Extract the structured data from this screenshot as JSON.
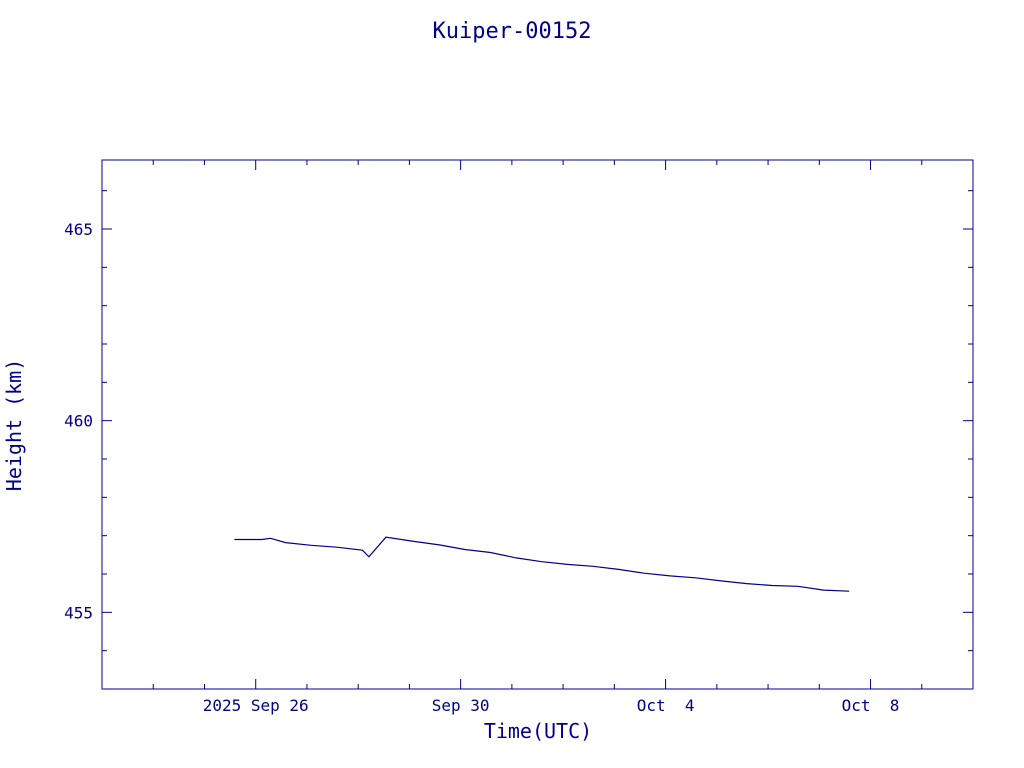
{
  "chart_data": {
    "type": "line",
    "title": "Kuiper-00152",
    "xlabel": "Time(UTC)",
    "ylabel": "Height (km)",
    "grid": false,
    "legend": "none",
    "color": "#00008b",
    "xlim": [
      "2025-09-23T00:00",
      "2025-10-10T00:00"
    ],
    "ylim": [
      453.0,
      466.8
    ],
    "x_ticks": [
      {
        "value": "2025-09-26T00:00",
        "label": "2025 Sep 26"
      },
      {
        "value": "2025-09-30T00:00",
        "label": "Sep 30"
      },
      {
        "value": "2025-10-04T00:00",
        "label": "Oct  4"
      },
      {
        "value": "2025-10-08T00:00",
        "label": "Oct  8"
      }
    ],
    "y_ticks": [
      {
        "value": 455,
        "label": "455"
      },
      {
        "value": 460,
        "label": "460"
      },
      {
        "value": 465,
        "label": "465"
      }
    ],
    "series": [
      {
        "x": [
          "2025-09-25T14:00",
          "2025-09-26T03:00",
          "2025-09-26T07:00",
          "2025-09-26T14:00",
          "2025-09-27T02:00",
          "2025-09-27T14:00",
          "2025-09-28T02:00",
          "2025-09-28T05:00",
          "2025-09-28T13:00",
          "2025-09-29T02:00",
          "2025-09-29T14:00",
          "2025-09-30T02:00",
          "2025-09-30T14:00",
          "2025-10-01T02:00",
          "2025-10-01T14:00",
          "2025-10-02T02:00",
          "2025-10-02T14:00",
          "2025-10-03T02:00",
          "2025-10-03T14:00",
          "2025-10-04T02:00",
          "2025-10-04T14:00",
          "2025-10-05T02:00",
          "2025-10-05T14:00",
          "2025-10-06T02:00",
          "2025-10-06T14:00",
          "2025-10-07T02:00",
          "2025-10-07T14:00"
        ],
        "y": [
          456.9,
          456.9,
          456.93,
          456.82,
          456.75,
          456.7,
          456.62,
          456.45,
          456.96,
          456.85,
          456.76,
          456.64,
          456.56,
          456.42,
          456.32,
          456.25,
          456.2,
          456.12,
          456.02,
          455.95,
          455.9,
          455.82,
          455.75,
          455.7,
          455.68,
          455.58,
          455.55
        ]
      }
    ]
  }
}
